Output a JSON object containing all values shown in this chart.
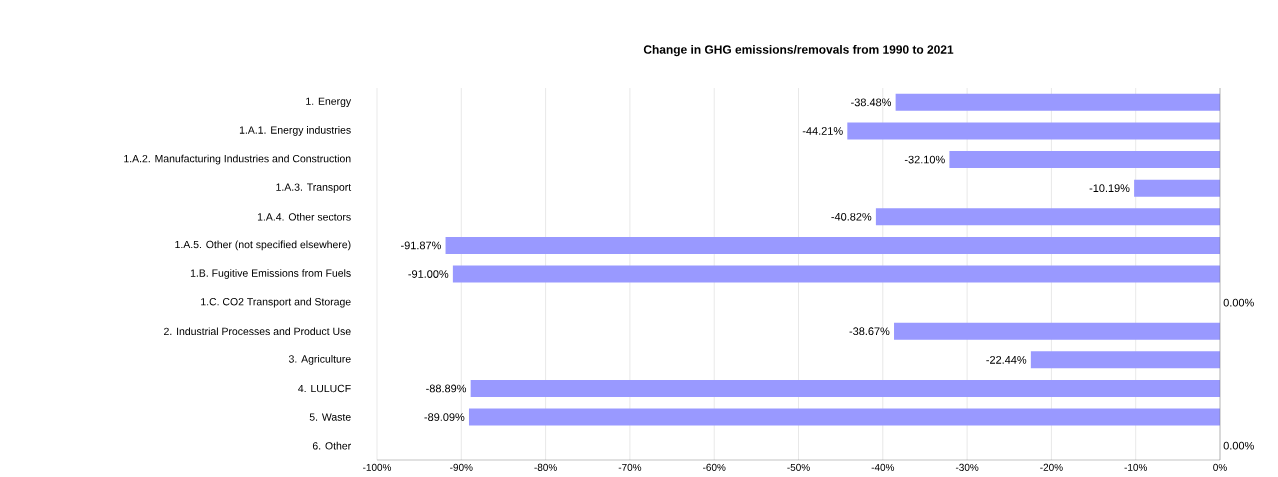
{
  "chart_data": {
    "type": "bar",
    "orientation": "horizontal",
    "title": "Change in GHG emissions/removals from 1990 to 2021",
    "categories": [
      "1. Energy",
      "1.A.1. Energy industries",
      "1.A.2. Manufacturing Industries and Construction",
      "1.A.3. Transport",
      "1.A.4. Other sectors",
      "1.A.5. Other (not specified elsewhere)",
      "1.B. Fugitive Emissions from Fuels",
      "1.C. CO2 Transport and Storage",
      "2. Industrial Processes and Product Use",
      "3. Agriculture",
      "4. LULUCF",
      "5. Waste",
      "6. Other"
    ],
    "values": [
      -38.48,
      -44.21,
      -32.1,
      -10.19,
      -40.82,
      -91.87,
      -91.0,
      0.0,
      -38.67,
      -22.44,
      -88.89,
      -89.09,
      0.0
    ],
    "value_labels": [
      "-38.48%",
      "-44.21%",
      "-32.10%",
      "-10.19%",
      "-40.82%",
      "-91.87%",
      "-91.00%",
      "0.00%",
      "-38.67%",
      "-22.44%",
      "-88.89%",
      "-89.09%",
      "0.00%"
    ],
    "color": "#9999ff",
    "xlim": [
      -100,
      0
    ],
    "xticks": [
      {
        "value": -100,
        "label": "-100%"
      },
      {
        "value": -90,
        "label": "-90%"
      },
      {
        "value": -80,
        "label": "-80%"
      },
      {
        "value": -70,
        "label": "-70%"
      },
      {
        "value": -60,
        "label": "-60%"
      },
      {
        "value": -50,
        "label": "-50%"
      },
      {
        "value": -40,
        "label": "-40%"
      },
      {
        "value": -30,
        "label": "-30%"
      },
      {
        "value": -20,
        "label": "-20%"
      },
      {
        "value": -10,
        "label": "-10%"
      },
      {
        "value": 0,
        "label": "0%"
      }
    ],
    "grid": "x"
  }
}
